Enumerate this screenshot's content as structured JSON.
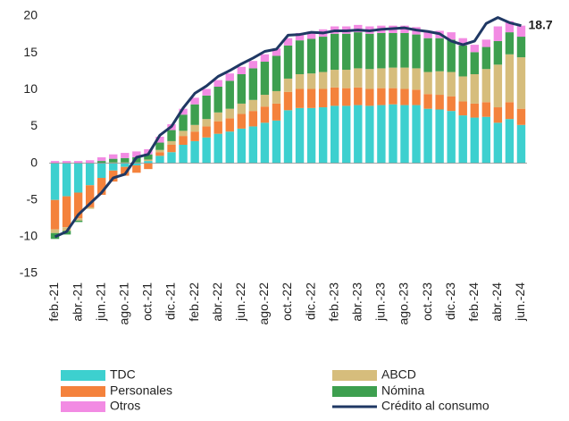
{
  "chart_data": {
    "type": "stacked-bar-line",
    "categories": [
      "feb.-21",
      null,
      "abr.-21",
      null,
      "jun.-21",
      null,
      "ago.-21",
      null,
      "oct.-21",
      null,
      "dic.-21",
      null,
      "feb.-22",
      null,
      "abr.-22",
      null,
      "jun.-22",
      null,
      "ago.-22",
      null,
      "oct.-22",
      null,
      "dic.-22",
      null,
      "feb.-23",
      null,
      "abr.-23",
      null,
      "jun.-23",
      null,
      "ago.-23",
      null,
      "oct.-23",
      null,
      "dic.-23",
      null,
      "feb.-24",
      null,
      "abr.-24",
      null,
      "jun.-24"
    ],
    "series": [
      {
        "name": "TDC",
        "color": "#3dd0cf",
        "values": [
          -5,
          -4.5,
          -4,
          -3,
          -2,
          -1,
          -0.5,
          -0.3,
          0.3,
          1,
          1.5,
          2.5,
          3,
          3.5,
          4,
          4.3,
          4.7,
          5,
          5.5,
          5.8,
          7.2,
          7.5,
          7.5,
          7.6,
          7.8,
          7.8,
          7.9,
          7.8,
          7.9,
          8,
          7.9,
          7.9,
          7.4,
          7.3,
          7.1,
          6.5,
          6.2,
          6.3,
          5.5,
          6,
          5.2
        ]
      },
      {
        "name": "Personales",
        "color": "#f4823c",
        "values": [
          -4,
          -4.2,
          -3.5,
          -3,
          -2.3,
          -1.5,
          -1.2,
          -1,
          -0.8,
          0.5,
          1,
          1.2,
          1.3,
          1.5,
          1.7,
          1.8,
          2,
          2.1,
          2.2,
          2.3,
          2.5,
          2.6,
          2.6,
          2.5,
          2.5,
          2.4,
          2.4,
          2.3,
          2.3,
          2.2,
          2.2,
          2.1,
          2,
          2,
          2,
          1.9,
          1.9,
          2,
          2.1,
          2.3,
          2.2
        ]
      },
      {
        "name": "ABCD",
        "color": "#d6bd7c",
        "values": [
          -0.5,
          -0.5,
          -0.3,
          -0.2,
          0,
          0.1,
          0.1,
          0.1,
          0.2,
          0.3,
          0.5,
          0.7,
          0.9,
          1,
          1.2,
          1.3,
          1.4,
          1.5,
          1.6,
          1.7,
          1.8,
          2,
          2.1,
          2.3,
          2.4,
          2.5,
          2.6,
          2.7,
          2.7,
          2.8,
          2.9,
          2.9,
          3,
          3.2,
          3.3,
          3.4,
          4,
          4.5,
          5.8,
          6.5,
          7
        ]
      },
      {
        "name": "Nómina",
        "color": "#3d9f4f",
        "values": [
          -0.8,
          -0.5,
          -0.2,
          0,
          0.3,
          0.5,
          0.6,
          0.7,
          0.7,
          1,
          1.5,
          2.2,
          2.8,
          3.2,
          3.5,
          3.8,
          4,
          4.3,
          4.5,
          4.8,
          4.5,
          4.6,
          4.7,
          4.8,
          4.9,
          4.9,
          4.9,
          4.8,
          4.8,
          4.7,
          4.7,
          4.6,
          4.6,
          4.5,
          4.4,
          4.2,
          3,
          3,
          3.2,
          3,
          2.8
        ]
      },
      {
        "name": "Otros",
        "color": "#f28be3",
        "values": [
          0.3,
          0.3,
          0.3,
          0.4,
          0.5,
          0.6,
          0.7,
          0.8,
          0.7,
          0.8,
          0.8,
          0.8,
          0.9,
          0.9,
          0.9,
          1,
          1,
          1,
          1,
          1,
          1,
          1,
          1,
          1,
          1,
          1,
          1,
          1,
          1,
          1,
          1,
          1,
          1,
          1,
          1,
          1,
          1,
          1,
          2,
          1.5,
          1.5
        ]
      },
      {
        "name": "Crédito al consumo",
        "color": "#1f3864",
        "type": "line",
        "values": [
          -10,
          -9.3,
          -7,
          -5.5,
          -4,
          -2,
          -1.5,
          0.8,
          1.2,
          3.8,
          5,
          7.5,
          9.5,
          10.5,
          11.8,
          12.6,
          13.5,
          14.3,
          15.2,
          15.5,
          17.4,
          17.5,
          17.8,
          17.7,
          18,
          18,
          18.1,
          18,
          18.2,
          18.3,
          18.4,
          18.1,
          17.9,
          17.6,
          16.6,
          16.1,
          16.6,
          19,
          19.8,
          19.1,
          18.7
        ],
        "value_labels": [
          null,
          null,
          null,
          null,
          null,
          null,
          null,
          null,
          null,
          null,
          null,
          null,
          null,
          null,
          null,
          null,
          null,
          null,
          null,
          null,
          null,
          null,
          null,
          null,
          null,
          null,
          null,
          null,
          null,
          null,
          null,
          null,
          null,
          null,
          null,
          null,
          null,
          null,
          null,
          null,
          "18.7"
        ]
      }
    ],
    "ylim": [
      -15,
      20
    ],
    "yticks": [
      -15,
      -10,
      -5,
      0,
      5,
      10,
      15,
      20
    ],
    "grid": false
  }
}
